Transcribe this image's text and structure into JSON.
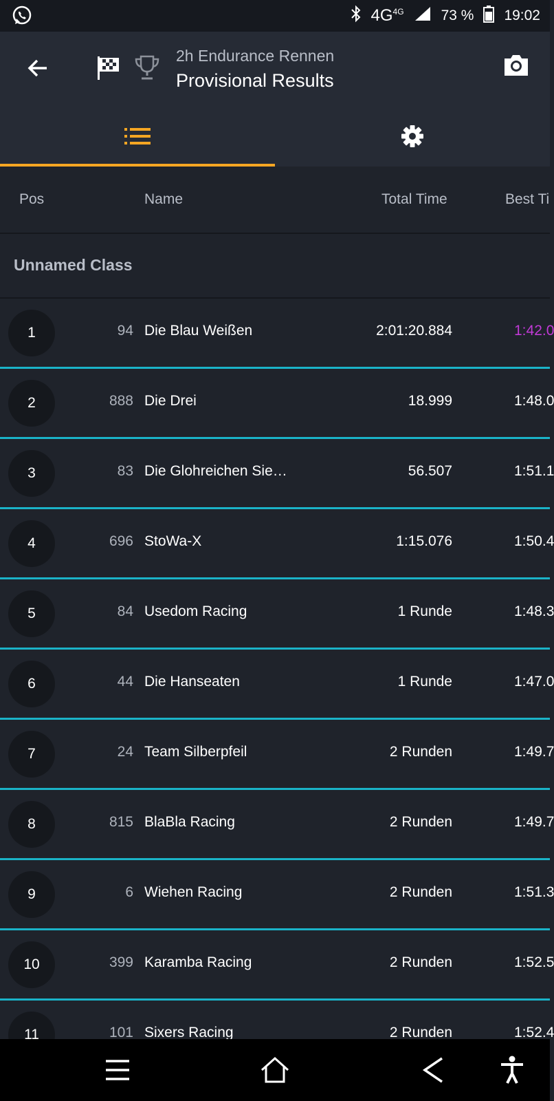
{
  "status": {
    "network": "4G",
    "network_small": "4G",
    "battery": "73 %",
    "time": "19:02"
  },
  "header": {
    "subtitle": "2h Endurance Rennen",
    "title": "Provisional Results"
  },
  "colors": {
    "accent": "#f5a623",
    "divider": "#1ab3c8",
    "fastest": "#c13ad6"
  },
  "columns": {
    "pos": "Pos",
    "name": "Name",
    "total": "Total Time",
    "best": "Best Ti"
  },
  "class_name": "Unnamed Class",
  "rows": [
    {
      "pos": "1",
      "number": "94",
      "name": "Die Blau Weißen",
      "total": "2:01:20.884",
      "best": "1:42.0"
    },
    {
      "pos": "2",
      "number": "888",
      "name": "Die Drei",
      "total": "18.999",
      "best": "1:48.0"
    },
    {
      "pos": "3",
      "number": "83",
      "name": "Die Glohreichen Sie…",
      "total": "56.507",
      "best": "1:51.1"
    },
    {
      "pos": "4",
      "number": "696",
      "name": "StoWa-X",
      "total": "1:15.076",
      "best": "1:50.4"
    },
    {
      "pos": "5",
      "number": "84",
      "name": "Usedom Racing",
      "total": "1 Runde",
      "best": "1:48.3"
    },
    {
      "pos": "6",
      "number": "44",
      "name": "Die Hanseaten",
      "total": "1 Runde",
      "best": "1:47.0"
    },
    {
      "pos": "7",
      "number": "24",
      "name": "Team Silberpfeil",
      "total": "2 Runden",
      "best": "1:49.7"
    },
    {
      "pos": "8",
      "number": "815",
      "name": "BlaBla Racing",
      "total": "2 Runden",
      "best": "1:49.7"
    },
    {
      "pos": "9",
      "number": "6",
      "name": "Wiehen Racing",
      "total": "2 Runden",
      "best": "1:51.3"
    },
    {
      "pos": "10",
      "number": "399",
      "name": "Karamba Racing",
      "total": "2 Runden",
      "best": "1:52.5"
    },
    {
      "pos": "11",
      "number": "101",
      "name": "Sixers Racing",
      "total": "2 Runden",
      "best": "1:52.4"
    }
  ]
}
